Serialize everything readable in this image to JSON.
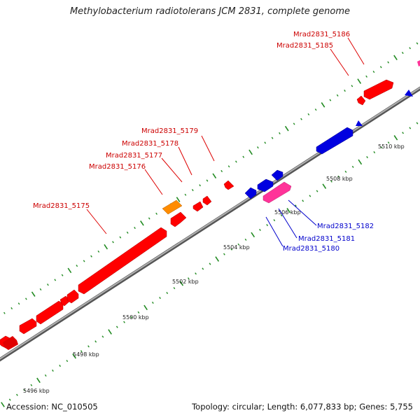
{
  "title": "Methylobacterium radiotolerans JCM 2831, complete genome",
  "footer": {
    "accession": "Accession: NC_010505",
    "stats": "Topology: circular; Length: 6,077,833 bp; Genes: 5,755"
  },
  "colors": {
    "forward": "#ff0000",
    "reverse": "#0000e0",
    "orange": "#ff8c00",
    "pink": "#ff3399",
    "backbone": "#888888",
    "tick": "#228b22",
    "forward_label": "#cc0000",
    "reverse_label": "#0000cc"
  },
  "ticks": [
    "5496 kbp",
    "5498 kbp",
    "5500 kbp",
    "5502 kbp",
    "5504 kbp",
    "5506 kbp",
    "5508 kbp",
    "5510 kbp"
  ],
  "forward_genes": [
    "Mrad2831_5175",
    "Mrad2831_5176",
    "Mrad2831_5177",
    "Mrad2831_5178",
    "Mrad2831_5179",
    "Mrad2831_5185",
    "Mrad2831_5186"
  ],
  "reverse_genes": [
    "Mrad2831_5180",
    "Mrad2831_5181",
    "Mrad2831_5182"
  ]
}
